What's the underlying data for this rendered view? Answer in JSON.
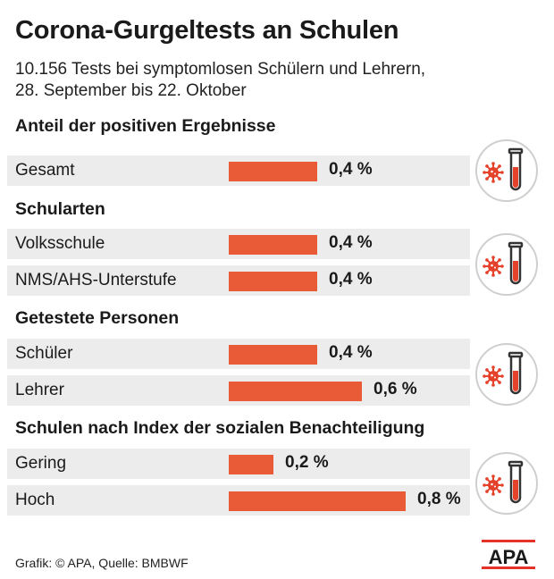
{
  "header": {
    "title": "Corona-Gurgeltests an Schulen",
    "subtitle_line1": "10.156 Tests bei symptomlosen Schülern und Lehrern,",
    "subtitle_line2": "28. September bis 22. Oktober"
  },
  "sections": [
    {
      "title": "Anteil der positiven Ergebnisse",
      "rows": [
        {
          "label": "Gesamt",
          "value_label": "0,4 %"
        }
      ]
    },
    {
      "title": "Schularten",
      "rows": [
        {
          "label": "Volksschule",
          "value_label": "0,4 %"
        },
        {
          "label": "NMS/AHS-Unterstufe",
          "value_label": "0,4 %"
        }
      ]
    },
    {
      "title": "Getestete Personen",
      "rows": [
        {
          "label": "Schüler",
          "value_label": "0,4 %"
        },
        {
          "label": "Lehrer",
          "value_label": "0,6 %"
        }
      ]
    },
    {
      "title": "Schulen nach Index der sozialen Benachteiligung",
      "rows": [
        {
          "label": "Gering",
          "value_label": "0,2 %"
        },
        {
          "label": "Hoch",
          "value_label": "0,8 %"
        }
      ]
    }
  ],
  "footer": {
    "credit": "Grafik: © APA, Quelle: BMBWF"
  },
  "logo": {
    "text": "APA",
    "icon": "apa-logo"
  },
  "icons": {
    "test-tube": "virus-test-tube-icon"
  },
  "colors": {
    "bar": "#e95a36",
    "row_bg": "#ececec",
    "icon_circle": "#cfcfcf"
  },
  "chart_data": {
    "type": "bar",
    "orientation": "horizontal",
    "title": "Corona-Gurgeltests an Schulen",
    "unit": "%",
    "categories": [
      "Gesamt",
      "Volksschule",
      "NMS/AHS-Unterstufe",
      "Schüler",
      "Lehrer",
      "Gering",
      "Hoch"
    ],
    "values": [
      0.4,
      0.4,
      0.4,
      0.4,
      0.6,
      0.2,
      0.8
    ],
    "groups": [
      {
        "name": "Anteil der positiven Ergebnisse",
        "categories": [
          "Gesamt"
        ]
      },
      {
        "name": "Schularten",
        "categories": [
          "Volksschule",
          "NMS/AHS-Unterstufe"
        ]
      },
      {
        "name": "Getestete Personen",
        "categories": [
          "Schüler",
          "Lehrer"
        ]
      },
      {
        "name": "Schulen nach Index der sozialen Benachteiligung",
        "categories": [
          "Gering",
          "Hoch"
        ]
      }
    ],
    "xlim": [
      0,
      0.8
    ],
    "grid": false
  }
}
